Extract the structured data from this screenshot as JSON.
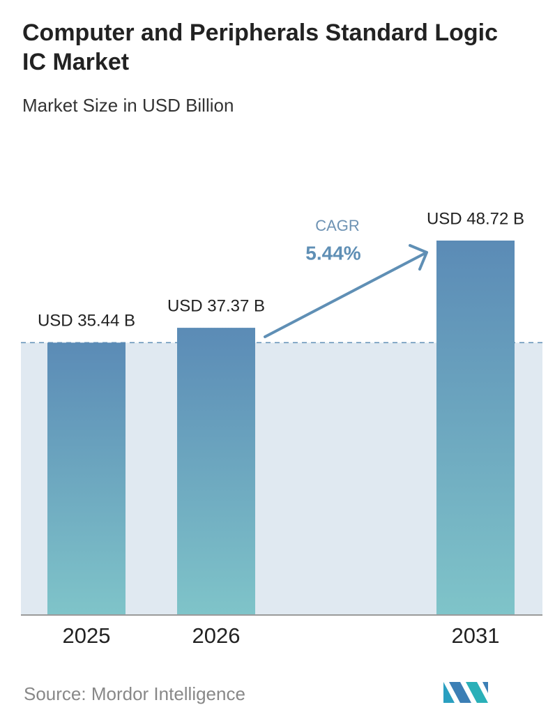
{
  "chart_data": {
    "type": "bar",
    "title": "Computer and Peripherals Standard Logic IC Market",
    "subtitle": "Market Size in USD Billion",
    "categories": [
      "2025",
      "2026",
      "2031"
    ],
    "values": [
      35.44,
      37.37,
      48.72
    ],
    "value_labels": [
      "USD 35.44 B",
      "USD 37.37 B",
      "USD 48.72 B"
    ],
    "annotation": {
      "label": "CAGR",
      "value": "5.44%"
    },
    "source": "Source: Mordor Intelligence"
  }
}
